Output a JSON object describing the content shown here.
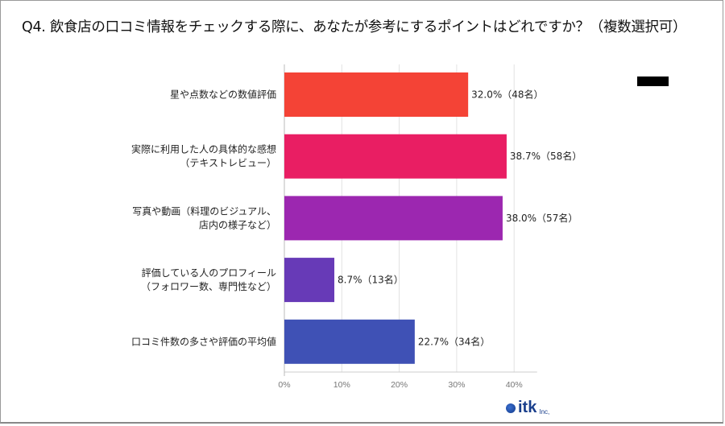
{
  "chart_data": {
    "type": "bar",
    "orientation": "horizontal",
    "title": "Q4. 飲食店の口コミ情報をチェックする際に、あなたが参考にするポイントはどれですか？（複数選択可）",
    "categories": [
      [
        "星や点数などの数値評価"
      ],
      [
        "実際に利用した人の具体的な感想",
        "（テキストレビュー）"
      ],
      [
        "写真や動画（料理のビジュアル、",
        "店内の様子など）"
      ],
      [
        "評価している人のプロフィール",
        "（フォロワー数、専門性など）"
      ],
      [
        "口コミ件数の多さや評価の平均値"
      ]
    ],
    "values": [
      32.0,
      38.7,
      38.0,
      8.7,
      22.7
    ],
    "data_labels": [
      "32.0%（48名）",
      "38.7%（58名）",
      "38.0%（57名）",
      "8.7%（13名）",
      "22.7%（34名）"
    ],
    "colors": [
      "#f44336",
      "#e91e63",
      "#9c27b0",
      "#673ab7",
      "#3f51b5"
    ],
    "xlim": [
      0,
      44
    ],
    "xticks": [
      "0%",
      "10%",
      "20%",
      "30%",
      "40%"
    ],
    "xtick_values": [
      0,
      10,
      20,
      30,
      40
    ],
    "grid": true,
    "legend": "redacted-black-box top-right"
  },
  "logo": {
    "text": "itk",
    "suffix": "Inc,"
  }
}
